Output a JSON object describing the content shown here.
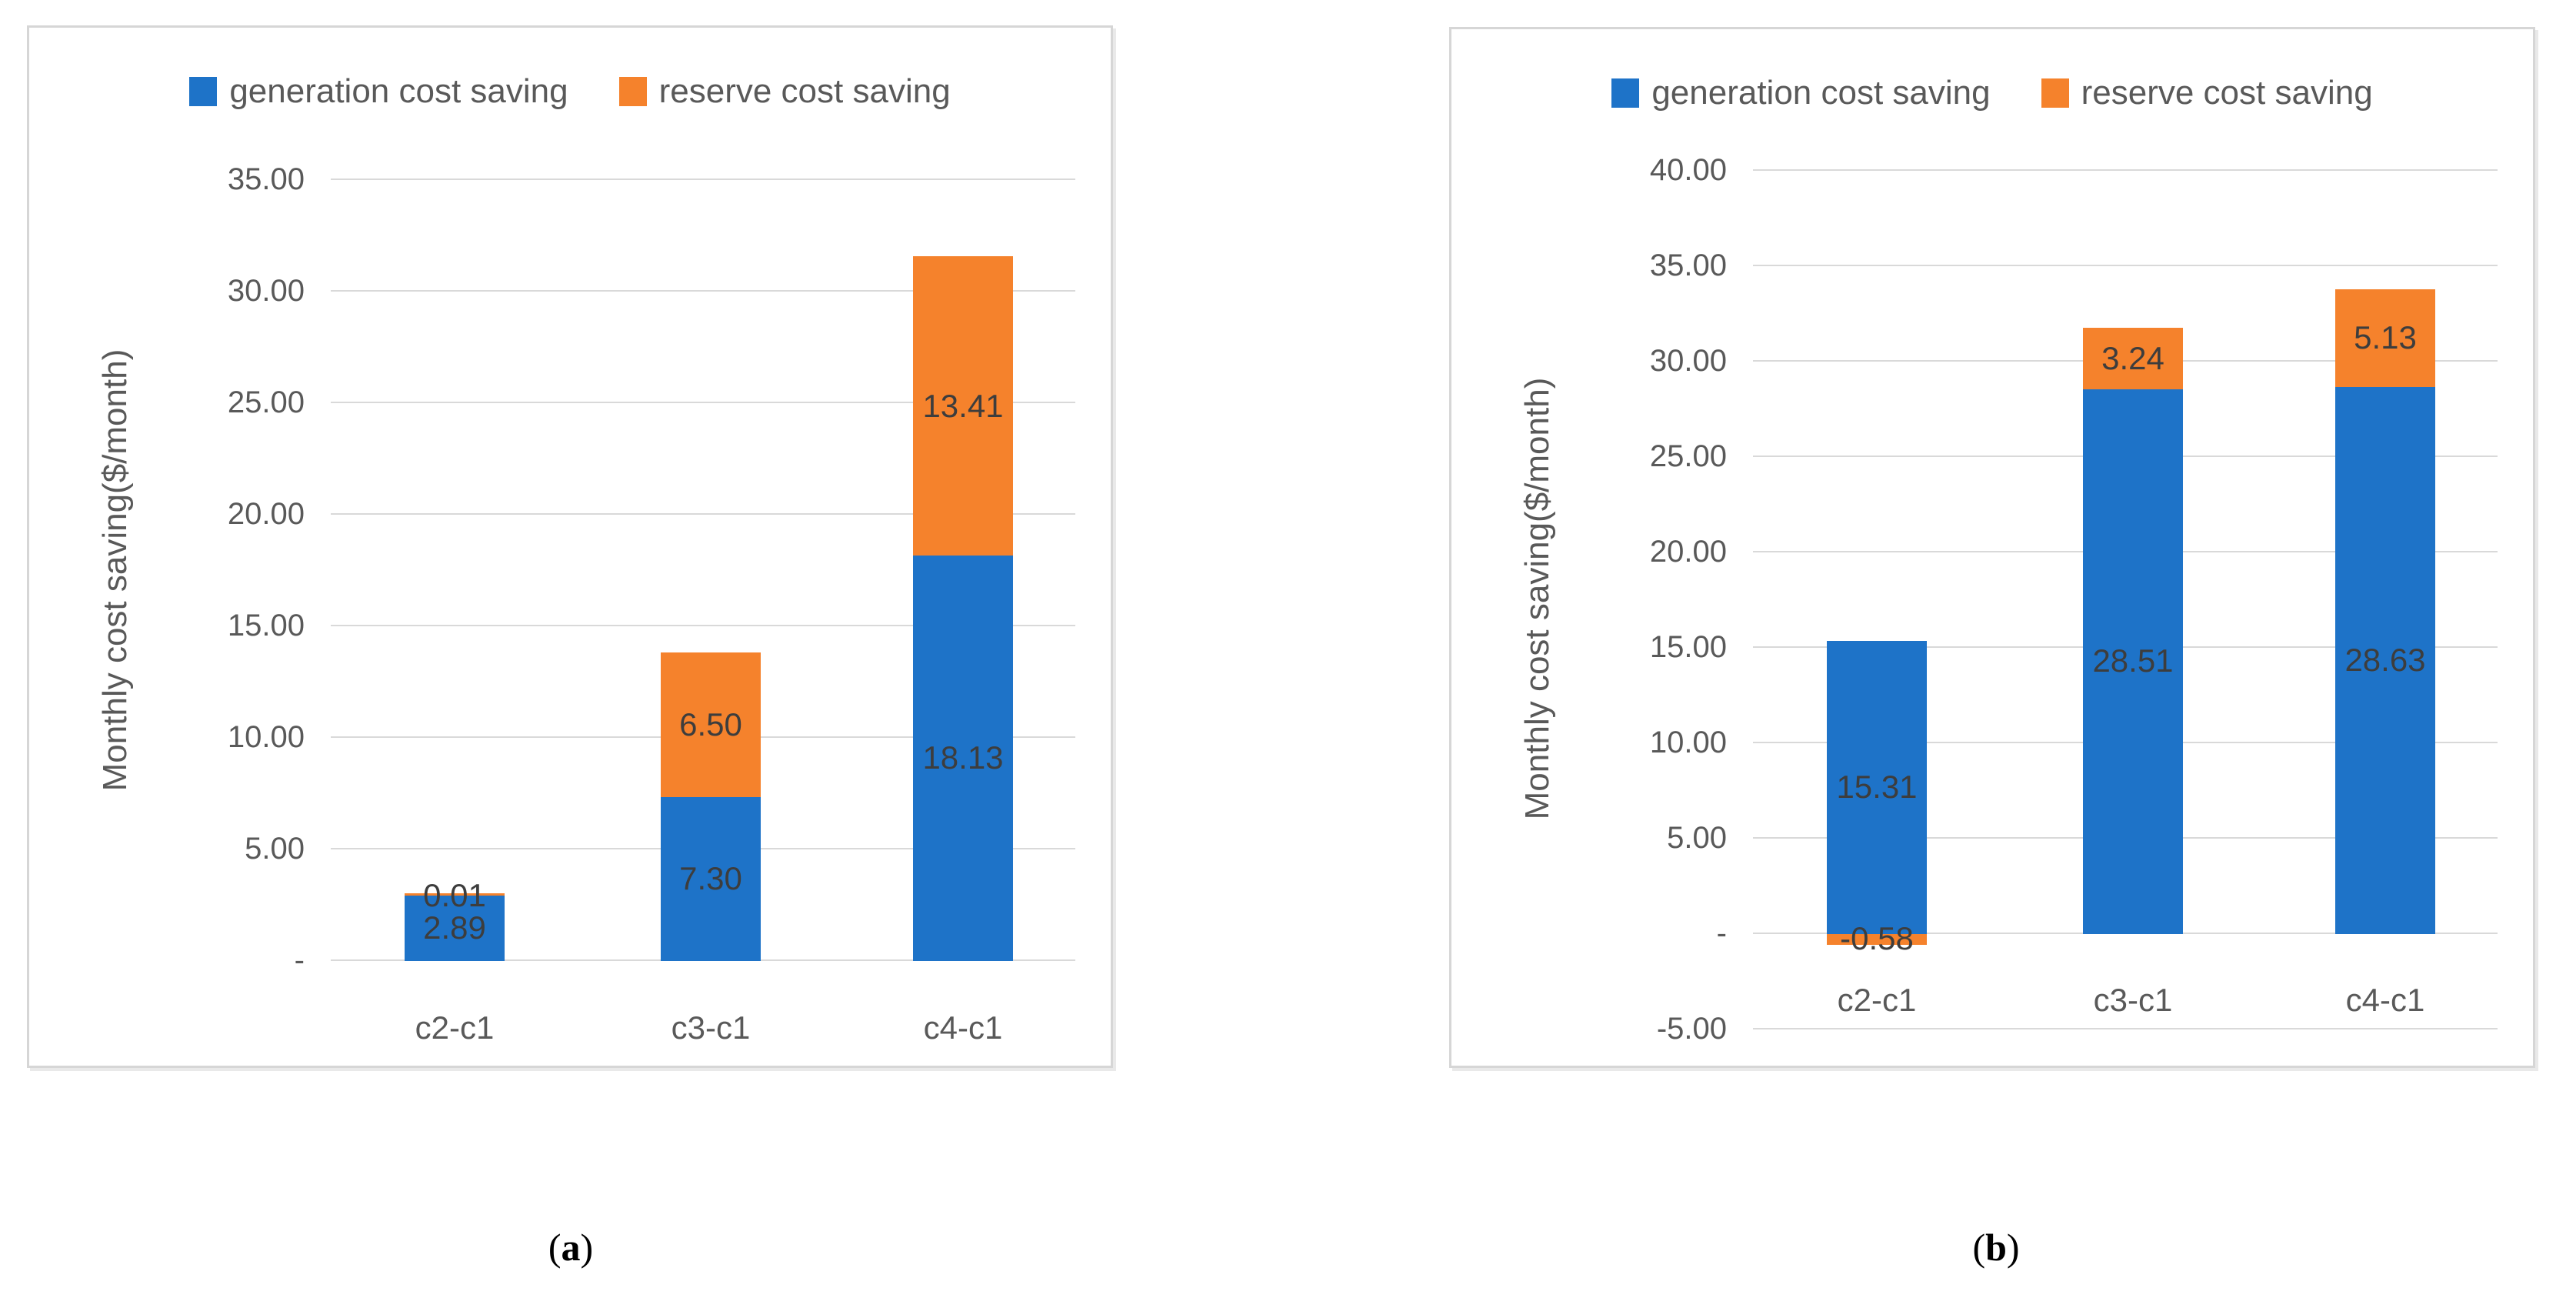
{
  "colors": {
    "generation": "#1e73c8",
    "reserve": "#f5822c",
    "gridline": "#d9d9d9",
    "axis_text": "#595959",
    "value_label_text": "#3d3d3d",
    "panel_border": "#d6d6d6"
  },
  "legend": {
    "generation_label": "generation cost saving",
    "reserve_label": "reserve cost saving"
  },
  "y_axis_title": "Monthly cost saving($/month)",
  "captions": {
    "a": {
      "open": "(",
      "letter": "a",
      "close": ")"
    },
    "b": {
      "open": "(",
      "letter": "b",
      "close": ")"
    }
  },
  "chart_data": [
    {
      "id": "a",
      "type": "bar",
      "stacked": true,
      "categories": [
        "c2-c1",
        "c3-c1",
        "c4-c1"
      ],
      "series": [
        {
          "name": "generation cost saving",
          "values": [
            2.89,
            7.3,
            18.13
          ]
        },
        {
          "name": "reserve cost saving",
          "values": [
            0.01,
            6.5,
            13.41
          ]
        }
      ],
      "data_labels": [
        [
          "2.89",
          "7.30",
          "18.13"
        ],
        [
          "0.01",
          "6.50",
          "13.41"
        ]
      ],
      "ylabel": "Monthly cost saving($/month)",
      "xlabel": "",
      "ylim": [
        0,
        35
      ],
      "yticks": [
        {
          "label": "35.00",
          "value": 35
        },
        {
          "label": "30.00",
          "value": 30
        },
        {
          "label": "25.00",
          "value": 25
        },
        {
          "label": "20.00",
          "value": 20
        },
        {
          "label": "15.00",
          "value": 15
        },
        {
          "label": "10.00",
          "value": 10
        },
        {
          "label": "5.00",
          "value": 5
        },
        {
          "label": "-",
          "value": 0
        }
      ],
      "grid": true,
      "legend_position": "top"
    },
    {
      "id": "b",
      "type": "bar",
      "stacked": true,
      "categories": [
        "c2-c1",
        "c3-c1",
        "c4-c1"
      ],
      "series": [
        {
          "name": "generation cost saving",
          "values": [
            15.31,
            28.51,
            28.63
          ]
        },
        {
          "name": "reserve cost saving",
          "values": [
            -0.58,
            3.24,
            5.13
          ]
        }
      ],
      "data_labels": [
        [
          "15.31",
          "28.51",
          "28.63"
        ],
        [
          "-0.58",
          "3.24",
          "5.13"
        ]
      ],
      "ylabel": "Monthly cost saving($/month)",
      "xlabel": "",
      "ylim": [
        -5,
        40
      ],
      "yticks": [
        {
          "label": "40.00",
          "value": 40
        },
        {
          "label": "35.00",
          "value": 35
        },
        {
          "label": "30.00",
          "value": 30
        },
        {
          "label": "25.00",
          "value": 25
        },
        {
          "label": "20.00",
          "value": 20
        },
        {
          "label": "15.00",
          "value": 15
        },
        {
          "label": "10.00",
          "value": 10
        },
        {
          "label": "5.00",
          "value": 5
        },
        {
          "label": "-",
          "value": 0
        },
        {
          "label": "-5.00",
          "value": -5
        }
      ],
      "grid": true,
      "legend_position": "top"
    }
  ]
}
